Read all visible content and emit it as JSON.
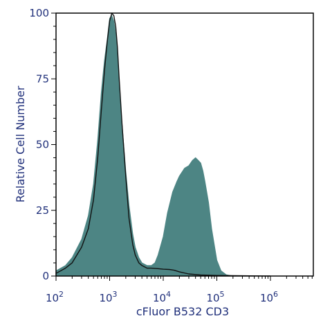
{
  "chart_data": {
    "type": "area",
    "xlabel": "cFluor B532 CD3",
    "ylabel": "Relative Cell Number",
    "x_scale": "log",
    "xlim": [
      100,
      4000000
    ],
    "ylim": [
      0,
      100
    ],
    "x_ticks": [
      {
        "value": 100,
        "base": "10",
        "exp": "2"
      },
      {
        "value": 1000,
        "base": "10",
        "exp": "3"
      },
      {
        "value": 10000,
        "base": "10",
        "exp": "4"
      },
      {
        "value": 100000,
        "base": "10",
        "exp": "5"
      },
      {
        "value": 1000000,
        "base": "10",
        "exp": "6"
      }
    ],
    "y_ticks": [
      {
        "value": 0,
        "label": "0"
      },
      {
        "value": 25,
        "label": "25"
      },
      {
        "value": 50,
        "label": "50"
      },
      {
        "value": 75,
        "label": "75"
      },
      {
        "value": 100,
        "label": "100"
      }
    ],
    "grid": false,
    "legend": "none",
    "series": [
      {
        "style": "filled",
        "color": "#4d8584",
        "x": [
          100,
          150,
          200,
          300,
          400,
          500,
          600,
          700,
          800,
          900,
          1000,
          1100,
          1200,
          1300,
          1400,
          1500,
          1700,
          2000,
          2300,
          2700,
          3000,
          3500,
          4000,
          5000,
          6000,
          7000,
          8000,
          10000,
          12000,
          15000,
          18000,
          20000,
          25000,
          30000,
          35000,
          40000,
          45000,
          50000,
          55000,
          60000,
          70000,
          80000,
          100000,
          120000,
          150000,
          200000
        ],
        "y": [
          2,
          4,
          7,
          14,
          23,
          35,
          52,
          70,
          82,
          90,
          98,
          99,
          97,
          92,
          85,
          73,
          58,
          40,
          27,
          16,
          11,
          7,
          5,
          4,
          4,
          5,
          8,
          15,
          24,
          32,
          36,
          38,
          41,
          42,
          44,
          45,
          44,
          43,
          40,
          36,
          28,
          18,
          6,
          2,
          0.5,
          0
        ]
      },
      {
        "style": "line",
        "color": "#111111",
        "x": [
          100,
          150,
          200,
          300,
          400,
          500,
          600,
          700,
          800,
          900,
          1000,
          1100,
          1200,
          1300,
          1400,
          1500,
          1700,
          2000,
          2300,
          2700,
          3000,
          3500,
          4000,
          5000,
          6000,
          8000,
          10000,
          13000,
          16000,
          20000,
          30000,
          50000,
          100000,
          300000,
          1000000
        ],
        "y": [
          1,
          3,
          5,
          11,
          18,
          29,
          45,
          63,
          78,
          89,
          97,
          100,
          99,
          95,
          87,
          76,
          58,
          38,
          22,
          12,
          8,
          5,
          4,
          3,
          3,
          2.8,
          2.6,
          2.5,
          2.2,
          1.6,
          0.8,
          0.4,
          0.2,
          0.1,
          0
        ]
      }
    ]
  }
}
